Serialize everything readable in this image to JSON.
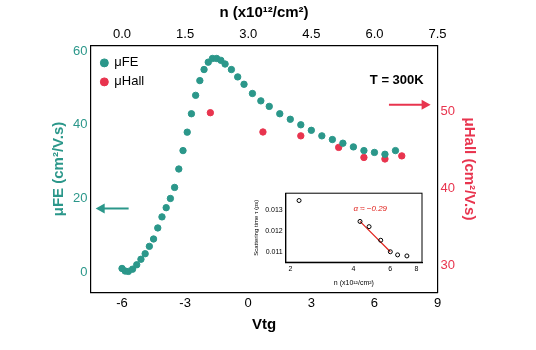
{
  "chart_data": [
    {
      "type": "scatter",
      "xlabel": "Vtg",
      "x2label": "n (x10¹²/cm²)",
      "ylabel": "μFE (cm²/V.s)",
      "y2label": "μHall (cm²/V.s)",
      "xlim": [
        -7.5,
        9
      ],
      "xticks": [
        -6,
        -3,
        0,
        3,
        6,
        9
      ],
      "x2lim": [
        -0.75,
        7.5
      ],
      "x2ticks": [
        {
          "value": 0,
          "label": "0.0"
        },
        1.5,
        {
          "value": 3,
          "label": "3.0"
        },
        4.5,
        {
          "value": 6,
          "label": "6.0"
        },
        7.5
      ],
      "ylim": [
        -5.5,
        61.5
      ],
      "yticks": [
        0,
        20,
        40,
        60
      ],
      "y2lim": [
        26.5,
        58.5
      ],
      "y2ticks": [
        30,
        40,
        50
      ],
      "grid": false,
      "legend": "upper left",
      "annotations": [
        {
          "text": "T = 300K"
        }
      ],
      "series": [
        {
          "name": "μFE",
          "color": "#2b978a",
          "marker": "circle",
          "x": [
            -6.0,
            -5.85,
            -5.7,
            -5.5,
            -5.3,
            -5.1,
            -4.9,
            -4.7,
            -4.5,
            -4.3,
            -4.1,
            -3.9,
            -3.7,
            -3.5,
            -3.3,
            -3.1,
            -2.9,
            -2.7,
            -2.5,
            -2.3,
            -2.1,
            -1.9,
            -1.7,
            -1.5,
            -1.3,
            -1.1,
            -0.8,
            -0.5,
            -0.2,
            0.2,
            0.6,
            1.0,
            1.5,
            2.0,
            2.5,
            3.0,
            3.5,
            4.0,
            4.5,
            5.0,
            5.5,
            6.0,
            6.5,
            7.0
          ],
          "values": [
            1.0,
            0.3,
            0.2,
            0.8,
            2,
            3.5,
            5,
            7,
            9,
            12,
            15,
            17.5,
            20,
            23,
            28,
            33,
            38,
            43,
            48,
            52,
            55,
            57,
            58,
            58,
            57.5,
            56.5,
            55,
            53,
            51,
            48.5,
            46.5,
            45,
            43,
            41.5,
            40,
            38.5,
            37,
            36,
            35,
            34,
            33,
            32.5,
            32,
            33
          ]
        },
        {
          "name": "μHall",
          "color": "#e8344e",
          "marker": "circle",
          "axis": "y2",
          "x": [
            -1.8,
            0.7,
            2.5,
            4.3,
            5.5,
            6.5,
            7.3
          ],
          "values": [
            49.8,
            47.3,
            46.8,
            45.3,
            44.0,
            43.8,
            44.2
          ]
        }
      ]
    },
    {
      "type": "scatter",
      "xlabel": "n (x10¹²/cm²)",
      "ylabel": "Scattering time τ (ps)",
      "log": "x",
      "xlim": [
        1.9,
        8.5
      ],
      "xticks": [
        2,
        4,
        6,
        8
      ],
      "ylim": [
        0.0105,
        0.0138
      ],
      "yticks": [
        0.011,
        0.012,
        0.013
      ],
      "grid": false,
      "annotations": [
        {
          "text": "α ≈ −0.29",
          "color": "#e0201b"
        }
      ],
      "series": [
        {
          "type": "scatter",
          "color": "#000000",
          "marker": "open_circle",
          "x": [
            2.2,
            4.3,
            4.75,
            5.4,
            6.0,
            6.5,
            7.2
          ],
          "values": [
            0.01345,
            0.01245,
            0.0122,
            0.01155,
            0.011,
            0.01085,
            0.0108
          ]
        },
        {
          "type": "line",
          "color": "#e0201b",
          "line_style": "solid",
          "x": [
            4.3,
            6.0
          ],
          "values": [
            0.01245,
            0.011
          ]
        }
      ]
    }
  ]
}
